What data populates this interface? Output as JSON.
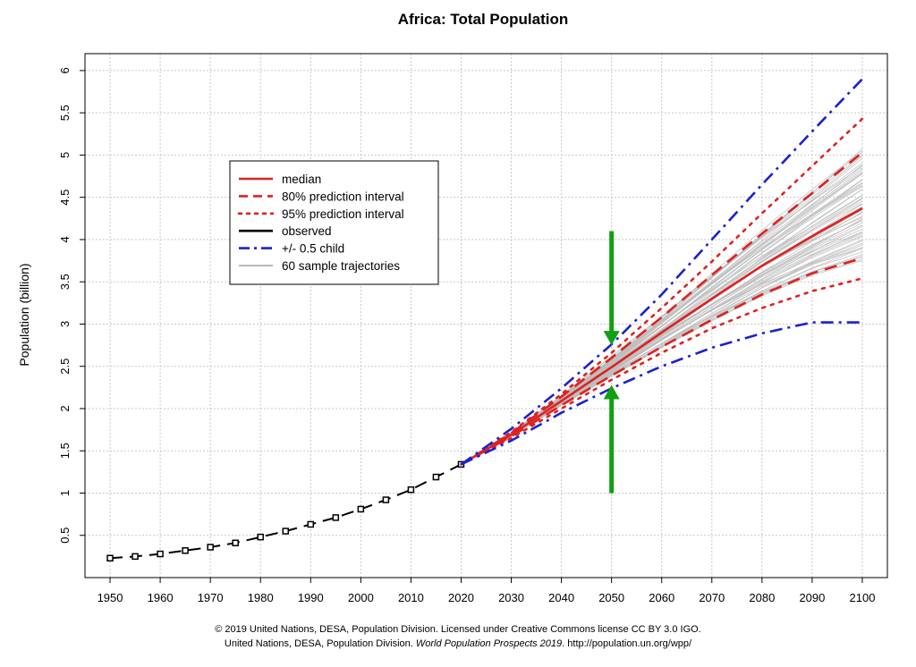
{
  "chart_data": {
    "type": "line",
    "title": "Africa: Total Population",
    "ylabel": "Population (billion)",
    "xlabel": "",
    "xlim": [
      1945,
      2105
    ],
    "ylim": [
      0,
      6.2
    ],
    "x_ticks": [
      "1950",
      "1960",
      "1970",
      "1980",
      "1990",
      "2000",
      "2010",
      "2020",
      "2030",
      "2040",
      "2050",
      "2060",
      "2070",
      "2080",
      "2090",
      "2100"
    ],
    "y_ticks": [
      "0.5",
      "1",
      "1.5",
      "2",
      "2.5",
      "3",
      "3.5",
      "4",
      "4.5",
      "5",
      "5.5",
      "6"
    ],
    "grid": true,
    "legend_position": "top-left",
    "legend": [
      {
        "label": "median",
        "color": "#dd2222",
        "style": "solid"
      },
      {
        "label": "80% prediction interval",
        "color": "#dd2222",
        "style": "dashed"
      },
      {
        "label": "95% prediction interval",
        "color": "#dd2222",
        "style": "dotted"
      },
      {
        "label": "observed",
        "color": "#000000",
        "style": "solid"
      },
      {
        "label": "+/- 0.5 child",
        "color": "#1a22cc",
        "style": "dashdot"
      },
      {
        "label": "60 sample trajectories",
        "color": "#b8b8b8",
        "style": "solid"
      }
    ],
    "series": [
      {
        "name": "observed",
        "color": "#000000",
        "x": [
          1950,
          1955,
          1960,
          1965,
          1970,
          1975,
          1980,
          1985,
          1990,
          1995,
          2000,
          2005,
          2010,
          2015,
          2020
        ],
        "y": [
          0.23,
          0.25,
          0.28,
          0.32,
          0.36,
          0.41,
          0.48,
          0.55,
          0.63,
          0.71,
          0.81,
          0.92,
          1.04,
          1.19,
          1.34
        ]
      },
      {
        "name": "median",
        "color": "#dd2222",
        "x": [
          2020,
          2030,
          2040,
          2050,
          2060,
          2070,
          2080,
          2090,
          2100
        ],
        "y": [
          1.34,
          1.69,
          2.09,
          2.49,
          2.9,
          3.3,
          3.69,
          4.04,
          4.37
        ]
      },
      {
        "name": "80% prediction interval",
        "color": "#dd2222",
        "upper": {
          "x": [
            2020,
            2030,
            2040,
            2050,
            2060,
            2070,
            2080,
            2090,
            2100
          ],
          "y": [
            1.34,
            1.71,
            2.14,
            2.6,
            3.08,
            3.58,
            4.07,
            4.55,
            5.03
          ]
        },
        "lower": {
          "x": [
            2020,
            2030,
            2040,
            2050,
            2060,
            2070,
            2080,
            2090,
            2100
          ],
          "y": [
            1.34,
            1.67,
            2.04,
            2.39,
            2.73,
            3.05,
            3.35,
            3.6,
            3.78
          ]
        }
      },
      {
        "name": "95% prediction interval",
        "color": "#dd2222",
        "upper": {
          "x": [
            2020,
            2030,
            2040,
            2050,
            2060,
            2070,
            2080,
            2090,
            2100
          ],
          "y": [
            1.34,
            1.72,
            2.17,
            2.66,
            3.19,
            3.74,
            4.31,
            4.87,
            5.43
          ]
        },
        "lower": {
          "x": [
            2020,
            2030,
            2040,
            2050,
            2060,
            2070,
            2080,
            2090,
            2100
          ],
          "y": [
            1.34,
            1.65,
            2.0,
            2.34,
            2.66,
            2.95,
            3.19,
            3.39,
            3.54
          ]
        }
      },
      {
        "name": "+/- 0.5 child",
        "color": "#1a22cc",
        "upper": {
          "x": [
            2020,
            2030,
            2040,
            2050,
            2060,
            2070,
            2080,
            2090,
            2100
          ],
          "y": [
            1.34,
            1.76,
            2.24,
            2.76,
            3.35,
            4.0,
            4.65,
            5.28,
            5.9
          ]
        },
        "lower": {
          "x": [
            2020,
            2030,
            2040,
            2050,
            2060,
            2070,
            2080,
            2090,
            2100
          ],
          "y": [
            1.34,
            1.62,
            1.95,
            2.24,
            2.5,
            2.72,
            2.89,
            3.02,
            3.02
          ]
        }
      }
    ],
    "sample_trajectories_count": 60,
    "annotations": [
      {
        "type": "arrow-down",
        "color": "#11a011",
        "x": 2050,
        "y_from": 4.1,
        "y_to": 2.75
      },
      {
        "type": "arrow-up",
        "color": "#11a011",
        "x": 2050,
        "y_from": 1.0,
        "y_to": 2.28
      }
    ]
  },
  "credit": {
    "line1": "© 2019 United Nations, DESA, Population Division. Licensed under Creative Commons license CC BY 3.0 IGO.",
    "line2_prefix": "United Nations, DESA, Population Division. ",
    "line2_italic": "World Population Prospects 2019",
    "line2_suffix": ". http://population.un.org/wpp/"
  }
}
